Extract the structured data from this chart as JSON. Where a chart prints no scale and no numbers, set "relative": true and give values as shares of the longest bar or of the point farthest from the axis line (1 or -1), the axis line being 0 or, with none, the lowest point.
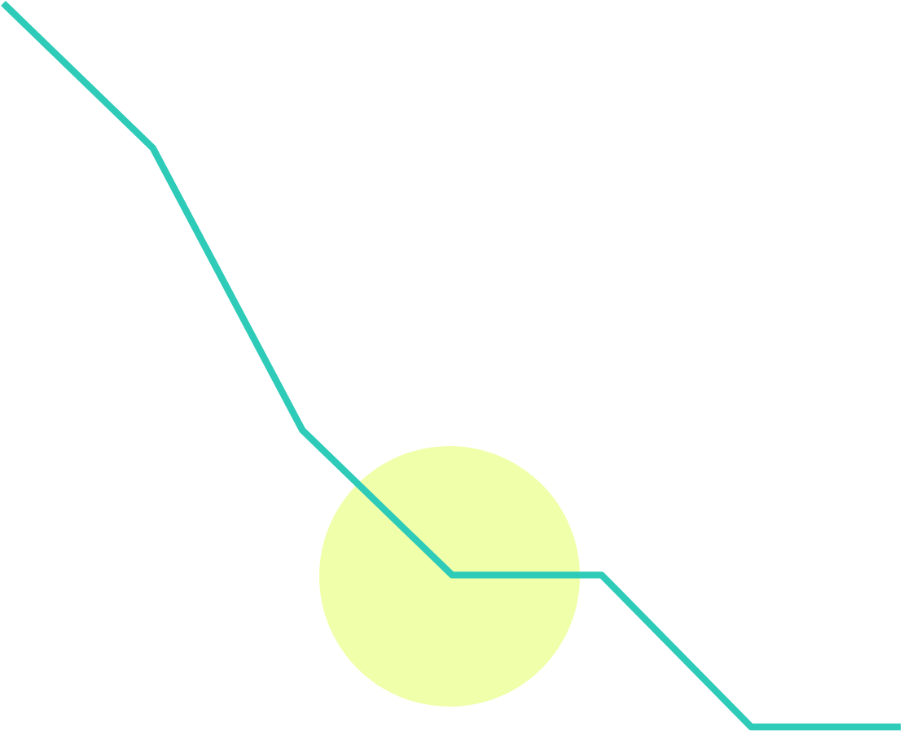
{
  "chart_data": {
    "type": "line",
    "relative": true,
    "categories": [
      null,
      null,
      null,
      null,
      null,
      null,
      null
    ],
    "series": [
      {
        "color": "#2ecbb8",
        "values": [
          1,
          0.8,
          0.41,
          0.21,
          0.21,
          0,
          0
        ]
      }
    ]
  }
}
